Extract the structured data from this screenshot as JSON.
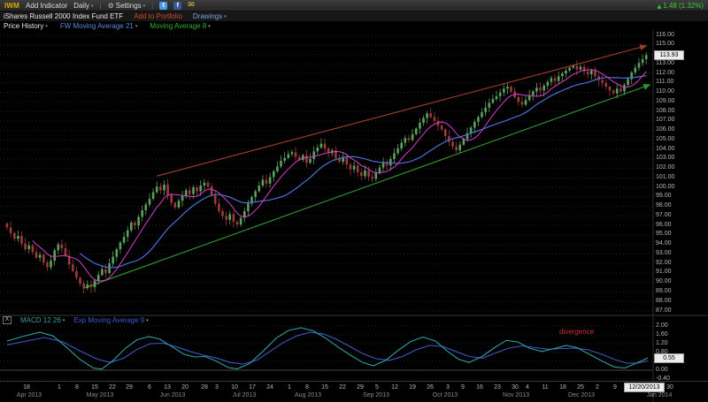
{
  "toolbar": {
    "symbol": "IWM",
    "add_indicator_label": "Add Indicator",
    "timeframe_label": "Daily",
    "settings_label": "Settings",
    "change_text": "1.48 (1.32%)"
  },
  "title_bar": {
    "instrument_name": "iShares Russell 2000 Index Fund ETF",
    "add_to_portfolio_label": "Add to Portfolio",
    "drawings_label": "Drawings"
  },
  "indicator_bar": {
    "price_history_label": "Price History",
    "ma21_label": "FW Moving Average 21",
    "ma8_label": "Moving Average 8"
  },
  "price_axis": {
    "min": 87,
    "max": 116,
    "step": 1,
    "current": "113.93"
  },
  "macd_header": {
    "close_label": "X",
    "macd_label": "MACD 12 26",
    "signal_label": "Exp Moving Average 9"
  },
  "macd_axis": {
    "min": -0.4,
    "max": 2,
    "step": 0.4,
    "current": "0.55"
  },
  "annotations": {
    "divergence_label": "divergence"
  },
  "date_axis": {
    "current_date": "12/20/2013",
    "current_date_x": 727,
    "last_tick": {
      "label": "30",
      "x": 757
    },
    "ticks": [
      {
        "label": "18",
        "x": 30
      },
      {
        "label": "1",
        "x": 67
      },
      {
        "label": "8",
        "x": 87
      },
      {
        "label": "15",
        "x": 107
      },
      {
        "label": "22",
        "x": 127
      },
      {
        "label": "29",
        "x": 146
      },
      {
        "label": "6",
        "x": 169
      },
      {
        "label": "13",
        "x": 189
      },
      {
        "label": "20",
        "x": 209
      },
      {
        "label": "28",
        "x": 231
      },
      {
        "label": "3",
        "x": 245
      },
      {
        "label": "10",
        "x": 265
      },
      {
        "label": "17",
        "x": 285
      },
      {
        "label": "24",
        "x": 305
      },
      {
        "label": "1",
        "x": 327
      },
      {
        "label": "8",
        "x": 347
      },
      {
        "label": "15",
        "x": 367
      },
      {
        "label": "22",
        "x": 387
      },
      {
        "label": "29",
        "x": 407
      },
      {
        "label": "5",
        "x": 426
      },
      {
        "label": "12",
        "x": 446
      },
      {
        "label": "19",
        "x": 466
      },
      {
        "label": "26",
        "x": 486
      },
      {
        "label": "3",
        "x": 506
      },
      {
        "label": "9",
        "x": 523
      },
      {
        "label": "16",
        "x": 542
      },
      {
        "label": "23",
        "x": 562
      },
      {
        "label": "30",
        "x": 582
      },
      {
        "label": "4",
        "x": 596
      },
      {
        "label": "11",
        "x": 616
      },
      {
        "label": "18",
        "x": 636
      },
      {
        "label": "25",
        "x": 656
      },
      {
        "label": "2",
        "x": 675
      },
      {
        "label": "9",
        "x": 695
      }
    ],
    "months": [
      {
        "label": "Apr 2013",
        "x": 33
      },
      {
        "label": "May 2013",
        "x": 113
      },
      {
        "label": "Jun 2013",
        "x": 195
      },
      {
        "label": "Jul 2013",
        "x": 276
      },
      {
        "label": "Aug 2013",
        "x": 348
      },
      {
        "label": "Sep 2013",
        "x": 425
      },
      {
        "label": "Oct 2013",
        "x": 503
      },
      {
        "label": "Nov 2013",
        "x": 583
      },
      {
        "label": "Dec 2013",
        "x": 657
      },
      {
        "label": "Jan 2014",
        "x": 745
      }
    ]
  },
  "colors": {
    "up_candle": "#5da05d",
    "down_candle": "#9c3b3b",
    "ma21": "#4f6fd8",
    "ma8": "#d840c8",
    "resistance_line": "#993b2a",
    "support_line": "#2f8f2f",
    "macd_line": "#2fa0a0",
    "signal_line": "#3f58c8",
    "change_positive": "#33cc33",
    "symbol_accent": "#d8ac00",
    "divergence": "#cc3333",
    "price_history_label_color": "#e8e8e8",
    "ma21_label_color": "#5b85d6",
    "ma8_label_color": "#2fae2f",
    "add_to_portfolio": "#cc4a28",
    "drawings_link": "#7aa4d8",
    "twitter": "#4a9ae8",
    "facebook": "#3b5998",
    "mail": "#e8c33a"
  },
  "chart_data": {
    "type": "candlestick",
    "symbol": "IWM",
    "title": "iShares Russell 2000 Index Fund ETF — Daily",
    "x_axis": "Apr 2013 - Jan 2014 (daily bars)",
    "y_axis": "Price (USD)",
    "ylim": [
      87,
      116
    ],
    "last_close": 113.93,
    "closes": [
      95.8,
      95.2,
      94.6,
      94.9,
      94.1,
      93.5,
      93.9,
      93.2,
      92.6,
      92.9,
      92.1,
      91.6,
      92.3,
      93.4,
      94.0,
      93.6,
      92.8,
      91.9,
      91.2,
      90.5,
      89.9,
      89.4,
      89.8,
      89.5,
      90.2,
      90.8,
      91.4,
      91.0,
      92.0,
      92.7,
      93.5,
      94.2,
      94.8,
      95.5,
      96.3,
      96.0,
      96.9,
      97.6,
      98.2,
      98.8,
      99.5,
      100.1,
      99.7,
      100.3,
      99.2,
      98.4,
      97.9,
      98.6,
      99.1,
      99.7,
      99.3,
      100.0,
      99.6,
      100.2,
      100.5,
      100.1,
      99.2,
      98.3,
      97.5,
      97.0,
      96.6,
      97.2,
      96.4,
      96.1,
      96.8,
      97.5,
      98.3,
      99.0,
      99.6,
      100.2,
      100.8,
      100.4,
      101.1,
      101.7,
      102.2,
      102.8,
      103.1,
      103.5,
      103.7,
      103.2,
      102.9,
      103.4,
      102.6,
      103.0,
      103.8,
      104.2,
      104.6,
      104.1,
      103.6,
      103.9,
      103.1,
      102.7,
      103.2,
      102.4,
      101.9,
      102.3,
      101.6,
      101.2,
      101.8,
      101.1,
      100.9,
      101.5,
      102.1,
      102.6,
      102.3,
      103.0,
      103.6,
      104.1,
      104.7,
      105.2,
      105.0,
      105.6,
      106.2,
      106.8,
      107.3,
      107.8,
      107.4,
      107.0,
      106.5,
      106.1,
      105.4,
      104.8,
      104.3,
      103.9,
      104.5,
      105.1,
      105.7,
      106.3,
      106.9,
      107.4,
      107.9,
      108.4,
      108.9,
      109.3,
      109.6,
      110.0,
      110.4,
      110.6,
      110.1,
      109.5,
      109.0,
      108.7,
      109.2,
      109.7,
      110.1,
      110.5,
      110.2,
      110.7,
      111.1,
      111.5,
      111.2,
      111.7,
      112.0,
      112.3,
      112.6,
      112.8,
      112.4,
      112.7,
      112.2,
      111.9,
      112.3,
      111.7,
      111.3,
      111.0,
      110.6,
      110.2,
      109.9,
      110.4,
      110.1,
      110.8,
      111.4,
      112.1,
      112.6,
      113.1,
      113.5,
      113.93
    ],
    "overlays": [
      {
        "name": "FW Moving Average 21",
        "type": "sma",
        "period": 21
      },
      {
        "name": "Moving Average 8",
        "type": "sma",
        "period": 8
      }
    ],
    "trendlines": [
      {
        "name": "resistance",
        "from_index": 41,
        "from_price": 101.2,
        "to_index": 175,
        "to_price": 114.9
      },
      {
        "name": "support",
        "from_index": 21,
        "from_price": 89.4,
        "to_index": 176,
        "to_price": 110.8
      }
    ],
    "lower_panel": {
      "type": "line",
      "name": "MACD 12 26 with Exp Moving Average 9",
      "ylim": [
        -0.4,
        2.0
      ],
      "last_value": 0.55,
      "macd_points": [
        [
          8,
          1.32
        ],
        [
          25,
          1.52
        ],
        [
          45,
          1.72
        ],
        [
          60,
          1.55
        ],
        [
          75,
          1.05
        ],
        [
          90,
          0.5
        ],
        [
          105,
          0.1
        ],
        [
          115,
          0.05
        ],
        [
          128,
          0.45
        ],
        [
          142,
          1.0
        ],
        [
          155,
          1.38
        ],
        [
          168,
          1.52
        ],
        [
          180,
          1.42
        ],
        [
          195,
          1.05
        ],
        [
          208,
          0.72
        ],
        [
          220,
          0.6
        ],
        [
          232,
          0.62
        ],
        [
          245,
          0.4
        ],
        [
          258,
          0.12
        ],
        [
          268,
          0.06
        ],
        [
          282,
          0.3
        ],
        [
          297,
          0.85
        ],
        [
          312,
          1.45
        ],
        [
          326,
          1.8
        ],
        [
          340,
          1.92
        ],
        [
          354,
          1.78
        ],
        [
          368,
          1.45
        ],
        [
          382,
          1.05
        ],
        [
          396,
          0.68
        ],
        [
          410,
          0.35
        ],
        [
          422,
          0.2
        ],
        [
          436,
          0.45
        ],
        [
          450,
          0.9
        ],
        [
          464,
          1.3
        ],
        [
          478,
          1.5
        ],
        [
          492,
          1.32
        ],
        [
          506,
          0.85
        ],
        [
          518,
          0.5
        ],
        [
          530,
          0.35
        ],
        [
          544,
          0.6
        ],
        [
          558,
          1.0
        ],
        [
          572,
          1.35
        ],
        [
          585,
          1.28
        ],
        [
          598,
          1.0
        ],
        [
          612,
          0.85
        ],
        [
          626,
          0.98
        ],
        [
          640,
          1.12
        ],
        [
          652,
          1.02
        ],
        [
          666,
          0.72
        ],
        [
          680,
          0.42
        ],
        [
          694,
          0.15
        ],
        [
          706,
          0.1
        ],
        [
          718,
          0.3
        ],
        [
          732,
          0.55
        ]
      ],
      "signal_points": [
        [
          8,
          1.15
        ],
        [
          30,
          1.32
        ],
        [
          50,
          1.48
        ],
        [
          70,
          1.3
        ],
        [
          90,
          0.88
        ],
        [
          110,
          0.5
        ],
        [
          125,
          0.35
        ],
        [
          140,
          0.55
        ],
        [
          155,
          0.95
        ],
        [
          170,
          1.2
        ],
        [
          185,
          1.22
        ],
        [
          200,
          1.05
        ],
        [
          215,
          0.85
        ],
        [
          230,
          0.68
        ],
        [
          245,
          0.55
        ],
        [
          260,
          0.35
        ],
        [
          275,
          0.28
        ],
        [
          290,
          0.45
        ],
        [
          305,
          0.85
        ],
        [
          320,
          1.25
        ],
        [
          335,
          1.55
        ],
        [
          350,
          1.72
        ],
        [
          365,
          1.65
        ],
        [
          380,
          1.4
        ],
        [
          395,
          1.08
        ],
        [
          410,
          0.75
        ],
        [
          425,
          0.52
        ],
        [
          440,
          0.45
        ],
        [
          455,
          0.62
        ],
        [
          470,
          0.92
        ],
        [
          485,
          1.12
        ],
        [
          500,
          1.08
        ],
        [
          515,
          0.85
        ],
        [
          530,
          0.62
        ],
        [
          545,
          0.55
        ],
        [
          560,
          0.78
        ],
        [
          575,
          1.0
        ],
        [
          590,
          1.1
        ],
        [
          605,
          1.02
        ],
        [
          620,
          0.95
        ],
        [
          635,
          0.98
        ],
        [
          650,
          1.0
        ],
        [
          665,
          0.92
        ],
        [
          680,
          0.72
        ],
        [
          695,
          0.48
        ],
        [
          708,
          0.32
        ],
        [
          720,
          0.32
        ],
        [
          732,
          0.42
        ]
      ]
    }
  }
}
